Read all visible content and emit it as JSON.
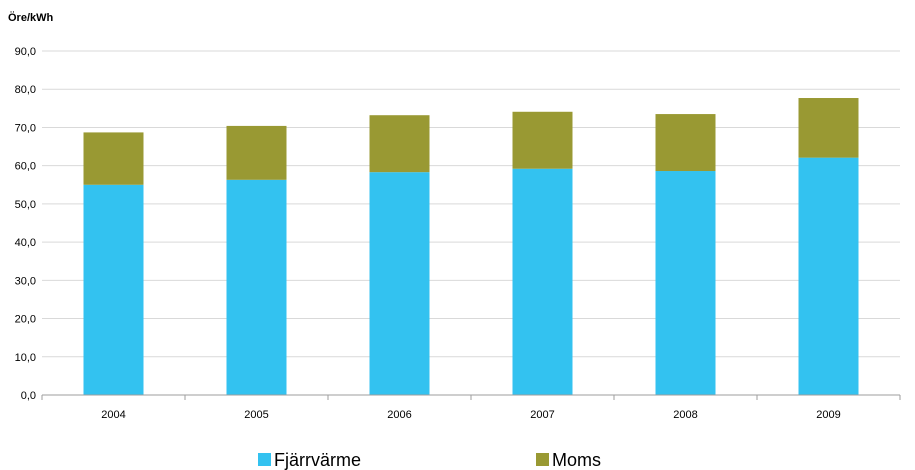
{
  "chart_data": {
    "type": "bar",
    "stacked": true,
    "ylabel": "Öre/kWh",
    "xlabel": "",
    "title": "",
    "categories": [
      "2004",
      "2005",
      "2006",
      "2007",
      "2008",
      "2009"
    ],
    "series": [
      {
        "name": "Fjärrvärme",
        "color": "#33c2f0",
        "values": [
          55.0,
          56.3,
          58.3,
          59.2,
          58.6,
          62.1
        ]
      },
      {
        "name": "Moms",
        "color": "#999933",
        "values": [
          13.7,
          14.1,
          14.9,
          14.9,
          14.9,
          15.6
        ]
      }
    ],
    "ylim": [
      0,
      90
    ],
    "yticks": [
      "0,0",
      "10,0",
      "20,0",
      "30,0",
      "40,0",
      "50,0",
      "60,0",
      "70,0",
      "80,0",
      "90,0"
    ],
    "grid": true,
    "legend_position": "bottom"
  }
}
